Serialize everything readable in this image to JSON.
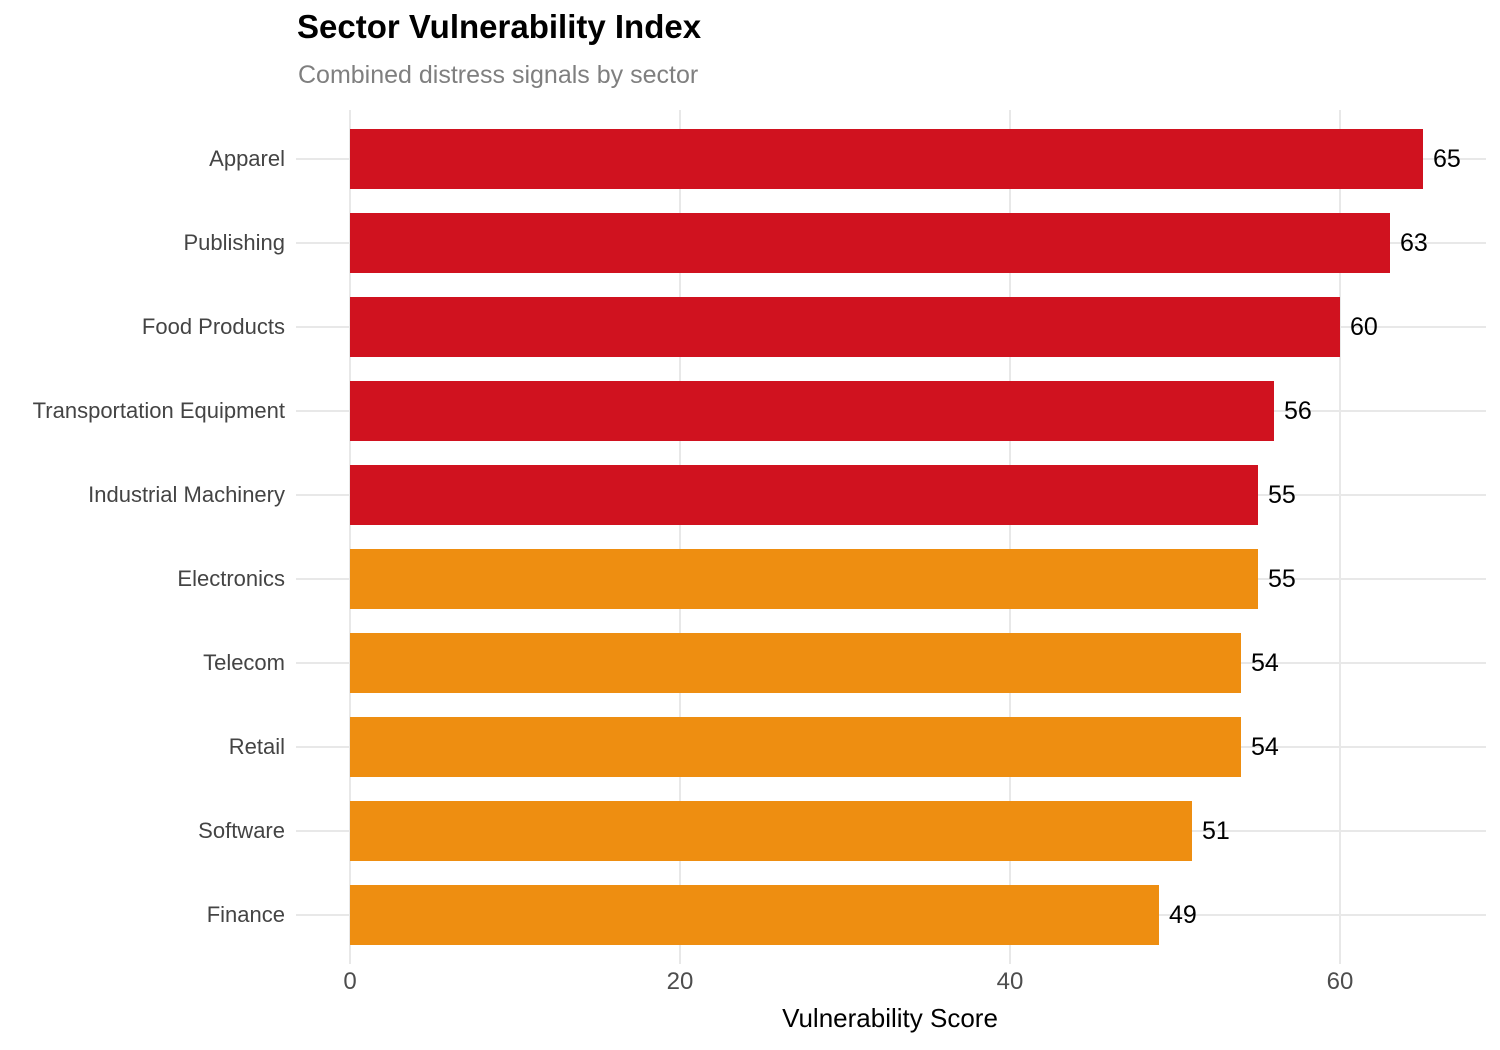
{
  "chart_data": {
    "type": "bar",
    "orientation": "horizontal",
    "title": "Sector Vulnerability Index",
    "subtitle": "Combined distress signals by sector",
    "xlabel": "Vulnerability Score",
    "categories": [
      "Apparel",
      "Publishing",
      "Food Products",
      "Transportation Equipment",
      "Industrial Machinery",
      "Electronics",
      "Telecom",
      "Retail",
      "Software",
      "Finance"
    ],
    "values": [
      65,
      63,
      60,
      56,
      55,
      55,
      54,
      54,
      51,
      49
    ],
    "value_labels": [
      "65",
      "63",
      "60",
      "56",
      "55",
      "55",
      "54",
      "54",
      "51",
      "49"
    ],
    "bar_colors": [
      "#D0121F",
      "#D0121F",
      "#D0121F",
      "#D0121F",
      "#D0121F",
      "#EE8E11",
      "#EE8E11",
      "#EE8E11",
      "#EE8E11",
      "#EE8E11"
    ],
    "x_ticks": [
      0,
      20,
      40,
      60
    ],
    "xlim": [
      0,
      68.9
    ],
    "grid": true,
    "legend": "none",
    "colors": {
      "high_band": "#D0121F",
      "moderate_band": "#EE8E11",
      "gridline": "#E8E8E8",
      "subtitle_text": "#7F7F7F",
      "category_text": "#444444",
      "tick_text": "#4D4D4D"
    }
  }
}
